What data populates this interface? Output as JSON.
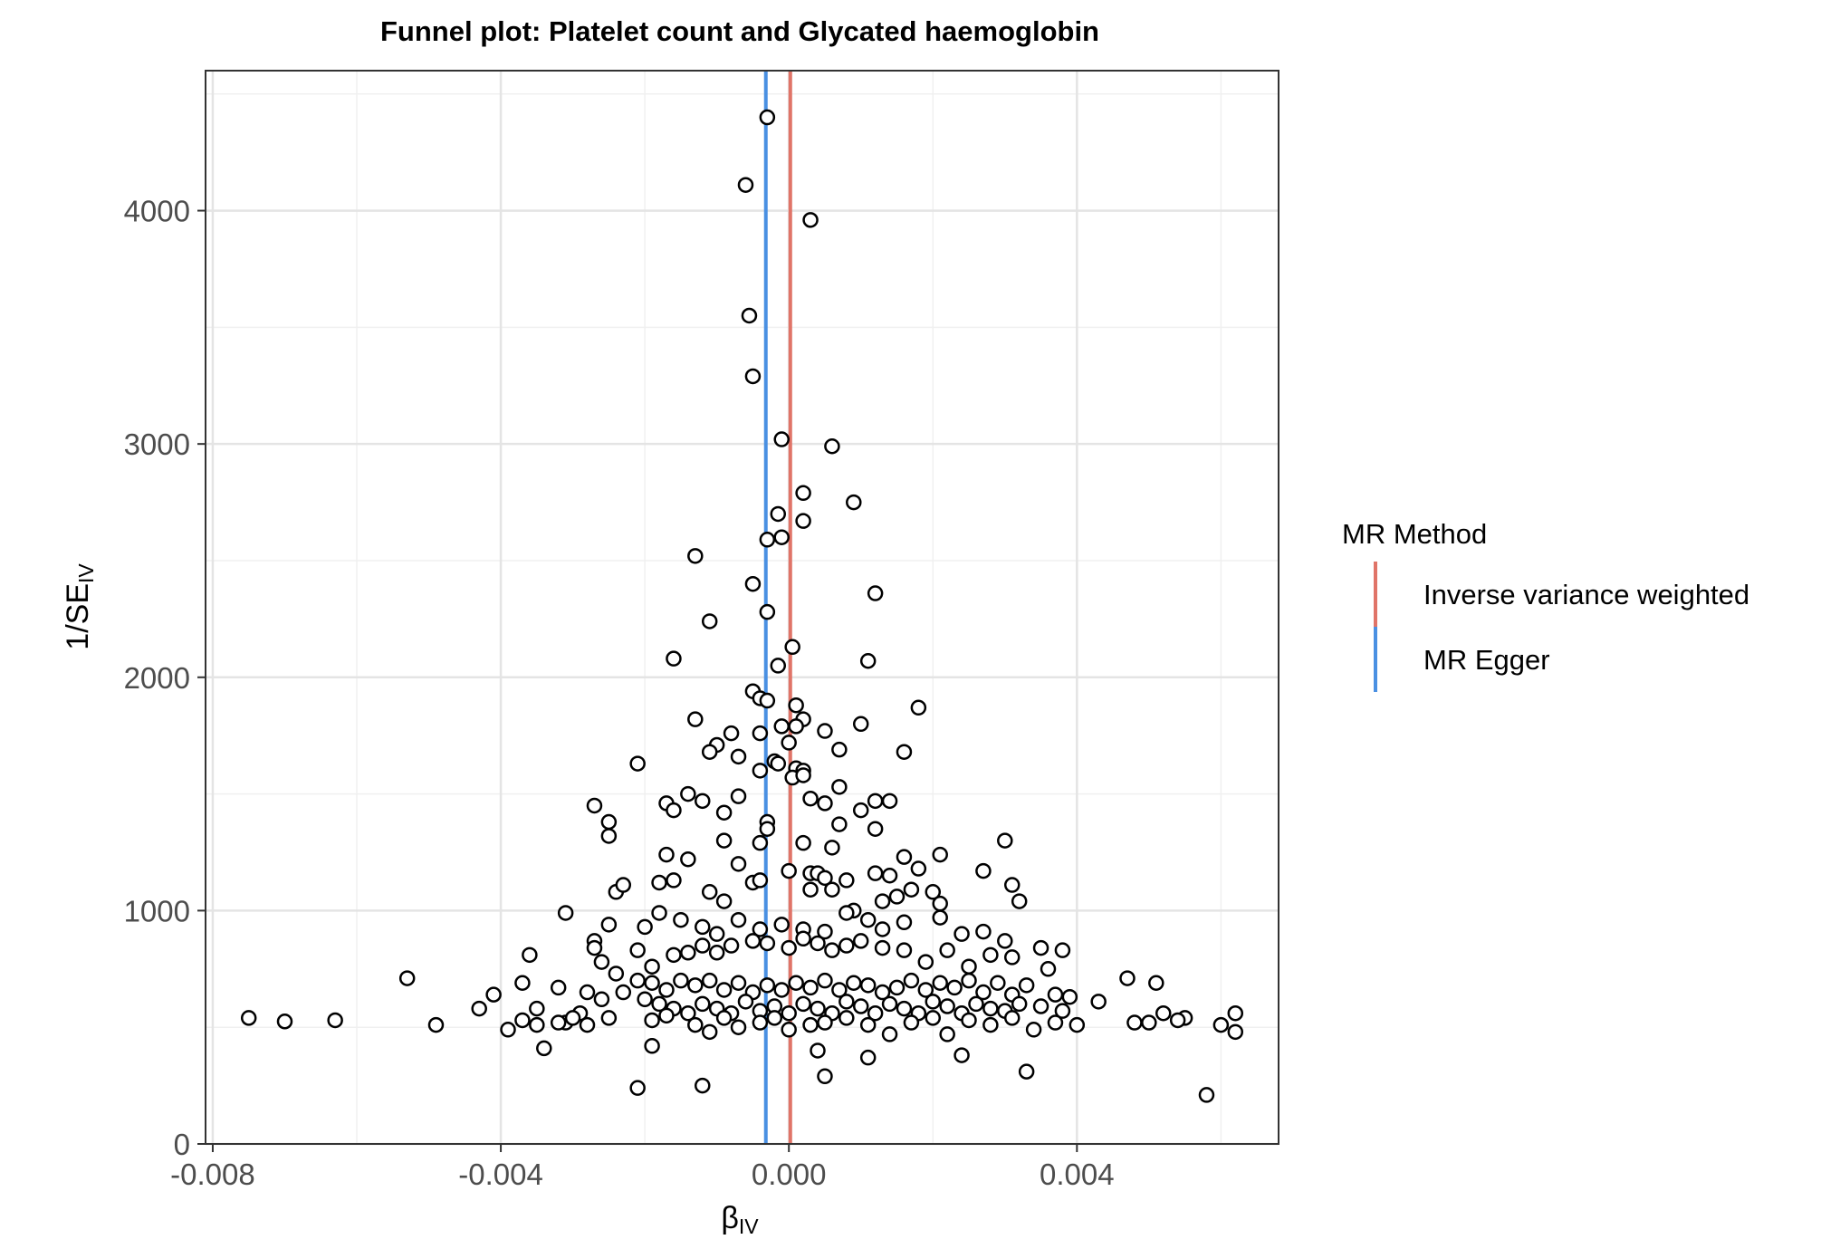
{
  "chart_data": {
    "type": "scatter",
    "title": "Funnel plot: Platelet count and Glycated haemoglobin",
    "xlabel": {
      "main": "β",
      "sub": "IV"
    },
    "ylabel": {
      "main": "1/SE",
      "sub": "IV"
    },
    "xlim": [
      -0.0081,
      0.0068
    ],
    "ylim": [
      0,
      4600
    ],
    "x_ticks": [
      -0.008,
      -0.004,
      0.0,
      0.004
    ],
    "x_tick_labels": [
      "-0.008",
      "-0.004",
      "0.000",
      "0.004"
    ],
    "y_ticks": [
      0,
      1000,
      2000,
      3000,
      4000
    ],
    "y_tick_labels": [
      "0",
      "1000",
      "2000",
      "3000",
      "4000"
    ],
    "grid": true,
    "legend": {
      "title": "MR Method",
      "placement": "right",
      "entries": [
        {
          "label": "Inverse variance weighted",
          "color": "#E07468"
        },
        {
          "label": "MR Egger",
          "color": "#4A90E2"
        }
      ]
    },
    "vlines": [
      {
        "method": "Inverse variance weighted",
        "x": 2e-05,
        "color": "#E07468"
      },
      {
        "method": "MR Egger",
        "x": -0.00032,
        "color": "#4A90E2"
      }
    ],
    "points": [
      [
        -0.0003,
        4400
      ],
      [
        -0.0006,
        4110
      ],
      [
        0.0003,
        3960
      ],
      [
        -0.00055,
        3550
      ],
      [
        -0.0005,
        3290
      ],
      [
        -0.0001,
        3020
      ],
      [
        0.0006,
        2990
      ],
      [
        0.0009,
        2750
      ],
      [
        0.0002,
        2790
      ],
      [
        -0.00015,
        2700
      ],
      [
        0.0002,
        2670
      ],
      [
        -0.0001,
        2600
      ],
      [
        -0.0003,
        2590
      ],
      [
        -0.0013,
        2520
      ],
      [
        -0.0005,
        2400
      ],
      [
        0.0012,
        2360
      ],
      [
        -0.0003,
        2280
      ],
      [
        -0.0011,
        2240
      ],
      [
        5e-05,
        2130
      ],
      [
        -0.0016,
        2080
      ],
      [
        -0.00015,
        2050
      ],
      [
        0.0011,
        2070
      ],
      [
        -0.0005,
        1940
      ],
      [
        -0.0004,
        1910
      ],
      [
        -0.0003,
        1900
      ],
      [
        0.0001,
        1880
      ],
      [
        0.0018,
        1870
      ],
      [
        -0.0013,
        1820
      ],
      [
        0.0002,
        1820
      ],
      [
        -0.0001,
        1790
      ],
      [
        0.0001,
        1790
      ],
      [
        0.001,
        1800
      ],
      [
        -0.0008,
        1760
      ],
      [
        -0.0004,
        1760
      ],
      [
        0.0005,
        1770
      ],
      [
        0.0,
        1720
      ],
      [
        -0.001,
        1710
      ],
      [
        -0.0011,
        1680
      ],
      [
        -0.0007,
        1660
      ],
      [
        0.0007,
        1690
      ],
      [
        0.0016,
        1680
      ],
      [
        -0.0021,
        1630
      ],
      [
        -0.0002,
        1640
      ],
      [
        -0.00015,
        1630
      ],
      [
        0.0001,
        1610
      ],
      [
        0.0002,
        1600
      ],
      [
        -0.0004,
        1600
      ],
      [
        5e-05,
        1570
      ],
      [
        0.0002,
        1580
      ],
      [
        -0.0017,
        1460
      ],
      [
        -0.0012,
        1470
      ],
      [
        -0.0007,
        1490
      ],
      [
        -0.0014,
        1500
      ],
      [
        -0.0016,
        1430
      ],
      [
        0.0003,
        1480
      ],
      [
        0.0005,
        1460
      ],
      [
        0.0007,
        1530
      ],
      [
        0.0012,
        1470
      ],
      [
        0.0014,
        1470
      ],
      [
        -0.0027,
        1450
      ],
      [
        -0.0025,
        1380
      ],
      [
        -0.0025,
        1320
      ],
      [
        -0.0009,
        1420
      ],
      [
        -0.0003,
        1380
      ],
      [
        -0.0003,
        1350
      ],
      [
        0.0002,
        1290
      ],
      [
        0.0006,
        1270
      ],
      [
        0.0007,
        1370
      ],
      [
        0.001,
        1430
      ],
      [
        0.0012,
        1350
      ],
      [
        -0.0017,
        1240
      ],
      [
        -0.0014,
        1220
      ],
      [
        -0.0009,
        1300
      ],
      [
        -0.0007,
        1200
      ],
      [
        -0.0004,
        1290
      ],
      [
        0.0,
        1170
      ],
      [
        0.0003,
        1160
      ],
      [
        0.0004,
        1160
      ],
      [
        0.0005,
        1140
      ],
      [
        0.0008,
        1130
      ],
      [
        0.0012,
        1160
      ],
      [
        0.0014,
        1150
      ],
      [
        0.0016,
        1230
      ],
      [
        0.0018,
        1180
      ],
      [
        0.0021,
        1240
      ],
      [
        0.0027,
        1170
      ],
      [
        0.003,
        1300
      ],
      [
        0.0031,
        1110
      ],
      [
        0.0032,
        1040
      ],
      [
        -0.0024,
        1080
      ],
      [
        -0.0023,
        1110
      ],
      [
        -0.0018,
        1120
      ],
      [
        -0.0016,
        1130
      ],
      [
        -0.0011,
        1080
      ],
      [
        -0.0009,
        1040
      ],
      [
        -0.0005,
        1120
      ],
      [
        -0.0004,
        1130
      ],
      [
        0.0003,
        1090
      ],
      [
        0.0006,
        1090
      ],
      [
        0.0009,
        1000
      ],
      [
        0.0013,
        1040
      ],
      [
        0.0015,
        1060
      ],
      [
        0.0017,
        1090
      ],
      [
        0.002,
        1080
      ],
      [
        0.0021,
        1030
      ],
      [
        -0.0031,
        990
      ],
      [
        -0.0025,
        940
      ],
      [
        -0.002,
        930
      ],
      [
        -0.0018,
        990
      ],
      [
        -0.0015,
        960
      ],
      [
        -0.0012,
        930
      ],
      [
        -0.001,
        900
      ],
      [
        -0.0007,
        960
      ],
      [
        -0.0004,
        920
      ],
      [
        -0.0001,
        940
      ],
      [
        0.0002,
        920
      ],
      [
        0.0005,
        910
      ],
      [
        0.0008,
        990
      ],
      [
        0.0011,
        960
      ],
      [
        0.0013,
        920
      ],
      [
        0.0016,
        950
      ],
      [
        0.0021,
        970
      ],
      [
        0.0024,
        900
      ],
      [
        0.0027,
        910
      ],
      [
        0.003,
        870
      ],
      [
        -0.0036,
        810
      ],
      [
        -0.0027,
        870
      ],
      [
        -0.0027,
        840
      ],
      [
        -0.0026,
        780
      ],
      [
        -0.0021,
        830
      ],
      [
        -0.0019,
        760
      ],
      [
        -0.0016,
        810
      ],
      [
        -0.0014,
        820
      ],
      [
        -0.0012,
        850
      ],
      [
        -0.001,
        820
      ],
      [
        -0.0008,
        850
      ],
      [
        -0.0005,
        870
      ],
      [
        -0.0003,
        860
      ],
      [
        0.0,
        840
      ],
      [
        0.0002,
        880
      ],
      [
        0.0004,
        860
      ],
      [
        0.0006,
        830
      ],
      [
        0.0008,
        850
      ],
      [
        0.001,
        870
      ],
      [
        0.0013,
        840
      ],
      [
        0.0016,
        830
      ],
      [
        0.0019,
        780
      ],
      [
        0.0022,
        830
      ],
      [
        0.0025,
        760
      ],
      [
        0.0028,
        810
      ],
      [
        0.0031,
        800
      ],
      [
        0.0035,
        840
      ],
      [
        0.0038,
        830
      ],
      [
        0.0036,
        750
      ],
      [
        -0.0053,
        710
      ],
      [
        -0.0037,
        690
      ],
      [
        -0.0032,
        670
      ],
      [
        -0.0028,
        650
      ],
      [
        -0.0024,
        730
      ],
      [
        -0.0021,
        700
      ],
      [
        -0.0019,
        690
      ],
      [
        -0.0017,
        660
      ],
      [
        -0.0015,
        700
      ],
      [
        -0.0013,
        680
      ],
      [
        -0.0011,
        700
      ],
      [
        -0.0009,
        660
      ],
      [
        -0.0007,
        690
      ],
      [
        -0.0005,
        650
      ],
      [
        -0.0003,
        680
      ],
      [
        -0.0001,
        660
      ],
      [
        0.0001,
        690
      ],
      [
        0.0003,
        670
      ],
      [
        0.0005,
        700
      ],
      [
        0.0007,
        660
      ],
      [
        0.0009,
        690
      ],
      [
        0.0011,
        680
      ],
      [
        0.0013,
        650
      ],
      [
        0.0015,
        670
      ],
      [
        0.0017,
        700
      ],
      [
        0.0019,
        660
      ],
      [
        0.0021,
        690
      ],
      [
        0.0023,
        670
      ],
      [
        0.0025,
        700
      ],
      [
        0.0027,
        650
      ],
      [
        0.0029,
        690
      ],
      [
        0.0031,
        640
      ],
      [
        0.0033,
        680
      ],
      [
        0.0037,
        640
      ],
      [
        0.0039,
        630
      ],
      [
        0.0047,
        710
      ],
      [
        0.0051,
        690
      ],
      [
        -0.0041,
        640
      ],
      [
        -0.0035,
        580
      ],
      [
        -0.0031,
        520
      ],
      [
        -0.0029,
        560
      ],
      [
        -0.0026,
        620
      ],
      [
        -0.0023,
        650
      ],
      [
        -0.002,
        620
      ],
      [
        -0.0018,
        600
      ],
      [
        -0.0016,
        580
      ],
      [
        -0.0014,
        560
      ],
      [
        -0.0012,
        600
      ],
      [
        -0.001,
        580
      ],
      [
        -0.0008,
        560
      ],
      [
        -0.0006,
        610
      ],
      [
        -0.0004,
        570
      ],
      [
        -0.0002,
        590
      ],
      [
        0.0,
        560
      ],
      [
        0.0002,
        600
      ],
      [
        0.0004,
        580
      ],
      [
        0.0006,
        560
      ],
      [
        0.0008,
        610
      ],
      [
        0.001,
        590
      ],
      [
        0.0012,
        560
      ],
      [
        0.0014,
        600
      ],
      [
        0.0016,
        580
      ],
      [
        0.0018,
        560
      ],
      [
        0.002,
        610
      ],
      [
        0.0022,
        590
      ],
      [
        0.0024,
        560
      ],
      [
        0.0026,
        600
      ],
      [
        0.0028,
        580
      ],
      [
        0.003,
        570
      ],
      [
        0.0032,
        600
      ],
      [
        0.0035,
        590
      ],
      [
        0.0038,
        570
      ],
      [
        0.0043,
        610
      ],
      [
        0.0048,
        520
      ],
      [
        0.0052,
        560
      ],
      [
        0.0055,
        540
      ],
      [
        -0.0075,
        540
      ],
      [
        -0.007,
        525
      ],
      [
        -0.0063,
        530
      ],
      [
        -0.0049,
        510
      ],
      [
        -0.0043,
        580
      ],
      [
        -0.0039,
        490
      ],
      [
        -0.0037,
        530
      ],
      [
        -0.0035,
        510
      ],
      [
        -0.0032,
        520
      ],
      [
        -0.003,
        540
      ],
      [
        -0.0028,
        510
      ],
      [
        -0.0025,
        540
      ],
      [
        -0.0019,
        530
      ],
      [
        -0.0017,
        550
      ],
      [
        -0.0013,
        510
      ],
      [
        -0.0011,
        480
      ],
      [
        -0.0009,
        540
      ],
      [
        -0.0007,
        500
      ],
      [
        -0.0004,
        520
      ],
      [
        -0.0002,
        540
      ],
      [
        0.0,
        490
      ],
      [
        0.0003,
        510
      ],
      [
        0.0005,
        520
      ],
      [
        0.0008,
        540
      ],
      [
        0.0011,
        510
      ],
      [
        0.0014,
        470
      ],
      [
        0.0017,
        520
      ],
      [
        0.002,
        540
      ],
      [
        0.0022,
        470
      ],
      [
        0.0025,
        530
      ],
      [
        0.0028,
        510
      ],
      [
        0.0031,
        540
      ],
      [
        0.0034,
        490
      ],
      [
        0.0037,
        520
      ],
      [
        0.004,
        510
      ],
      [
        0.005,
        520
      ],
      [
        0.0054,
        530
      ],
      [
        0.006,
        510
      ],
      [
        0.0062,
        560
      ],
      [
        0.0062,
        480
      ],
      [
        -0.0034,
        410
      ],
      [
        -0.0019,
        420
      ],
      [
        0.0004,
        400
      ],
      [
        0.0011,
        370
      ],
      [
        0.0024,
        380
      ],
      [
        -0.0021,
        240
      ],
      [
        -0.0012,
        250
      ],
      [
        0.0005,
        290
      ],
      [
        0.0033,
        310
      ],
      [
        0.0058,
        210
      ]
    ]
  }
}
